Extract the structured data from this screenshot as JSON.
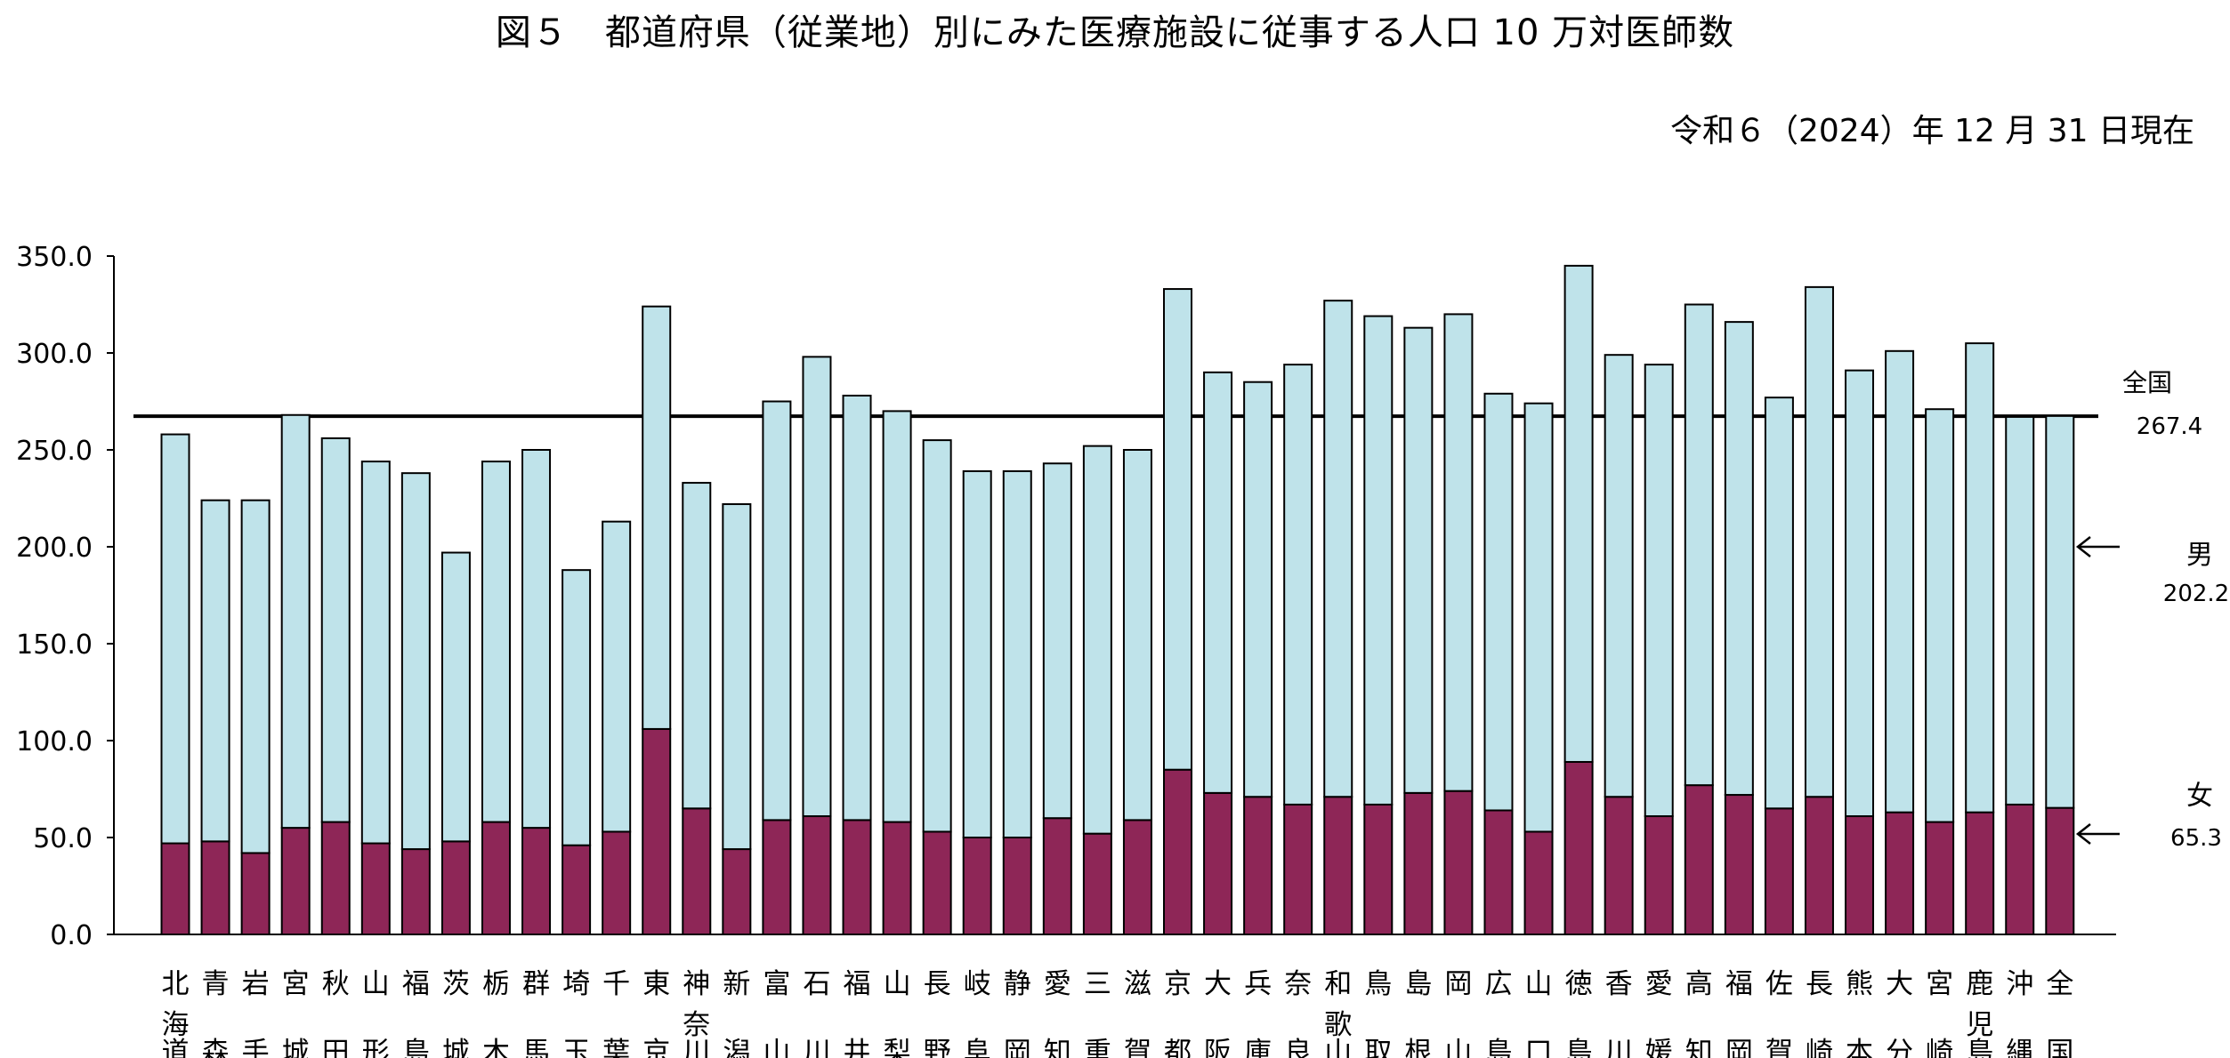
{
  "title": "図５　都道府県（従業地）別にみた医療施設に従事する人口 10 万対医師数",
  "date_note": "令和６（2024）年 12 月 31 日現在",
  "colors": {
    "male": "#bfe3ea",
    "female": "#8e2657",
    "outline": "#000000",
    "reference_line": "#000000"
  },
  "chart_data": {
    "type": "bar",
    "stacked": true,
    "ylim": [
      0,
      350
    ],
    "yticks": [
      "0.0",
      "50.0",
      "100.0",
      "150.0",
      "200.0",
      "250.0",
      "300.0",
      "350.0"
    ],
    "categories": [
      [
        "北",
        "海",
        "道"
      ],
      [
        "青",
        "",
        "森"
      ],
      [
        "岩",
        "",
        "手"
      ],
      [
        "宮",
        "",
        "城"
      ],
      [
        "秋",
        "",
        "田"
      ],
      [
        "山",
        "",
        "形"
      ],
      [
        "福",
        "",
        "島"
      ],
      [
        "茨",
        "",
        "城"
      ],
      [
        "栃",
        "",
        "木"
      ],
      [
        "群",
        "",
        "馬"
      ],
      [
        "埼",
        "",
        "玉"
      ],
      [
        "千",
        "",
        "葉"
      ],
      [
        "東",
        "",
        "京"
      ],
      [
        "神",
        "奈",
        "川"
      ],
      [
        "新",
        "",
        "潟"
      ],
      [
        "富",
        "",
        "山"
      ],
      [
        "石",
        "",
        "川"
      ],
      [
        "福",
        "",
        "井"
      ],
      [
        "山",
        "",
        "梨"
      ],
      [
        "長",
        "",
        "野"
      ],
      [
        "岐",
        "",
        "阜"
      ],
      [
        "静",
        "",
        "岡"
      ],
      [
        "愛",
        "",
        "知"
      ],
      [
        "三",
        "",
        "重"
      ],
      [
        "滋",
        "",
        "賀"
      ],
      [
        "京",
        "",
        "都"
      ],
      [
        "大",
        "",
        "阪"
      ],
      [
        "兵",
        "",
        "庫"
      ],
      [
        "奈",
        "",
        "良"
      ],
      [
        "和",
        "歌",
        "山"
      ],
      [
        "鳥",
        "",
        "取"
      ],
      [
        "島",
        "",
        "根"
      ],
      [
        "岡",
        "",
        "山"
      ],
      [
        "広",
        "",
        "島"
      ],
      [
        "山",
        "",
        "口"
      ],
      [
        "徳",
        "",
        "島"
      ],
      [
        "香",
        "",
        "川"
      ],
      [
        "愛",
        "",
        "媛"
      ],
      [
        "高",
        "",
        "知"
      ],
      [
        "福",
        "",
        "岡"
      ],
      [
        "佐",
        "",
        "賀"
      ],
      [
        "長",
        "",
        "崎"
      ],
      [
        "熊",
        "",
        "本"
      ],
      [
        "大",
        "",
        "分"
      ],
      [
        "宮",
        "",
        "崎"
      ],
      [
        "鹿",
        "児",
        "島"
      ],
      [
        "沖",
        "",
        "縄"
      ],
      [
        "全",
        "",
        "国"
      ]
    ],
    "series": [
      {
        "key": "female",
        "values": [
          47,
          48,
          42,
          55,
          58,
          47,
          44,
          48,
          58,
          55,
          46,
          53,
          106,
          65,
          44,
          59,
          61,
          59,
          58,
          53,
          50,
          50,
          60,
          52,
          59,
          85,
          73,
          71,
          67,
          71,
          67,
          73,
          74,
          64,
          53,
          89,
          71,
          61,
          77,
          72,
          65,
          71,
          61,
          63,
          58,
          63,
          67,
          65.3
        ]
      },
      {
        "key": "male",
        "values": [
          211,
          176,
          182,
          213,
          198,
          197,
          194,
          149,
          186,
          195,
          142,
          160,
          218,
          168,
          178,
          216,
          237,
          219,
          212,
          202,
          189,
          189,
          183,
          200,
          191,
          248,
          217,
          214,
          227,
          256,
          252,
          240,
          246,
          215,
          221,
          256,
          228,
          233,
          248,
          244,
          212,
          263,
          230,
          238,
          213,
          242,
          200,
          202.2
        ]
      }
    ],
    "reference_line": {
      "value": 267.4,
      "label": "全国",
      "value_label": "267.4"
    },
    "annotations": [
      {
        "label": "男",
        "value": "202.2"
      },
      {
        "label": "女",
        "value": "65.3"
      }
    ]
  }
}
